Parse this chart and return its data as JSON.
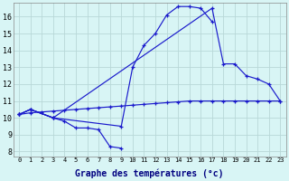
{
  "xlabel": "Graphe des températures (°c)",
  "background_color": "#d8f5f5",
  "grid_color": "#b8d8d8",
  "line_color": "#1a1acc",
  "yticks": [
    8,
    9,
    10,
    11,
    12,
    13,
    14,
    15,
    16
  ],
  "series1_x": [
    0,
    1,
    3,
    4,
    5,
    6,
    7,
    8,
    9
  ],
  "series1_y": [
    10.2,
    10.5,
    10.0,
    9.8,
    9.4,
    9.4,
    9.3,
    8.3,
    8.2
  ],
  "series2_x": [
    0,
    1,
    3,
    9,
    10,
    11,
    12,
    13,
    14,
    15,
    16,
    17
  ],
  "series2_y": [
    10.2,
    10.5,
    10.0,
    9.5,
    13.0,
    14.3,
    15.0,
    16.1,
    16.6,
    16.6,
    16.5,
    15.7
  ],
  "series3_x": [
    0,
    1,
    3,
    17,
    18,
    19,
    20,
    21,
    22,
    23
  ],
  "series3_y": [
    10.2,
    10.5,
    10.0,
    16.5,
    13.2,
    13.2,
    12.5,
    12.3,
    12.0,
    11.0
  ],
  "series4_x": [
    0,
    1,
    2,
    3,
    4,
    5,
    6,
    7,
    8,
    9,
    10,
    11,
    12,
    13,
    14,
    15,
    16,
    17,
    18,
    19,
    20,
    21,
    22,
    23
  ],
  "series4_y": [
    10.2,
    10.3,
    10.35,
    10.4,
    10.45,
    10.5,
    10.55,
    10.6,
    10.65,
    10.7,
    10.75,
    10.8,
    10.85,
    10.9,
    10.95,
    11.0,
    11.0,
    11.0,
    11.0,
    11.0,
    11.0,
    11.0,
    11.0,
    11.0
  ]
}
